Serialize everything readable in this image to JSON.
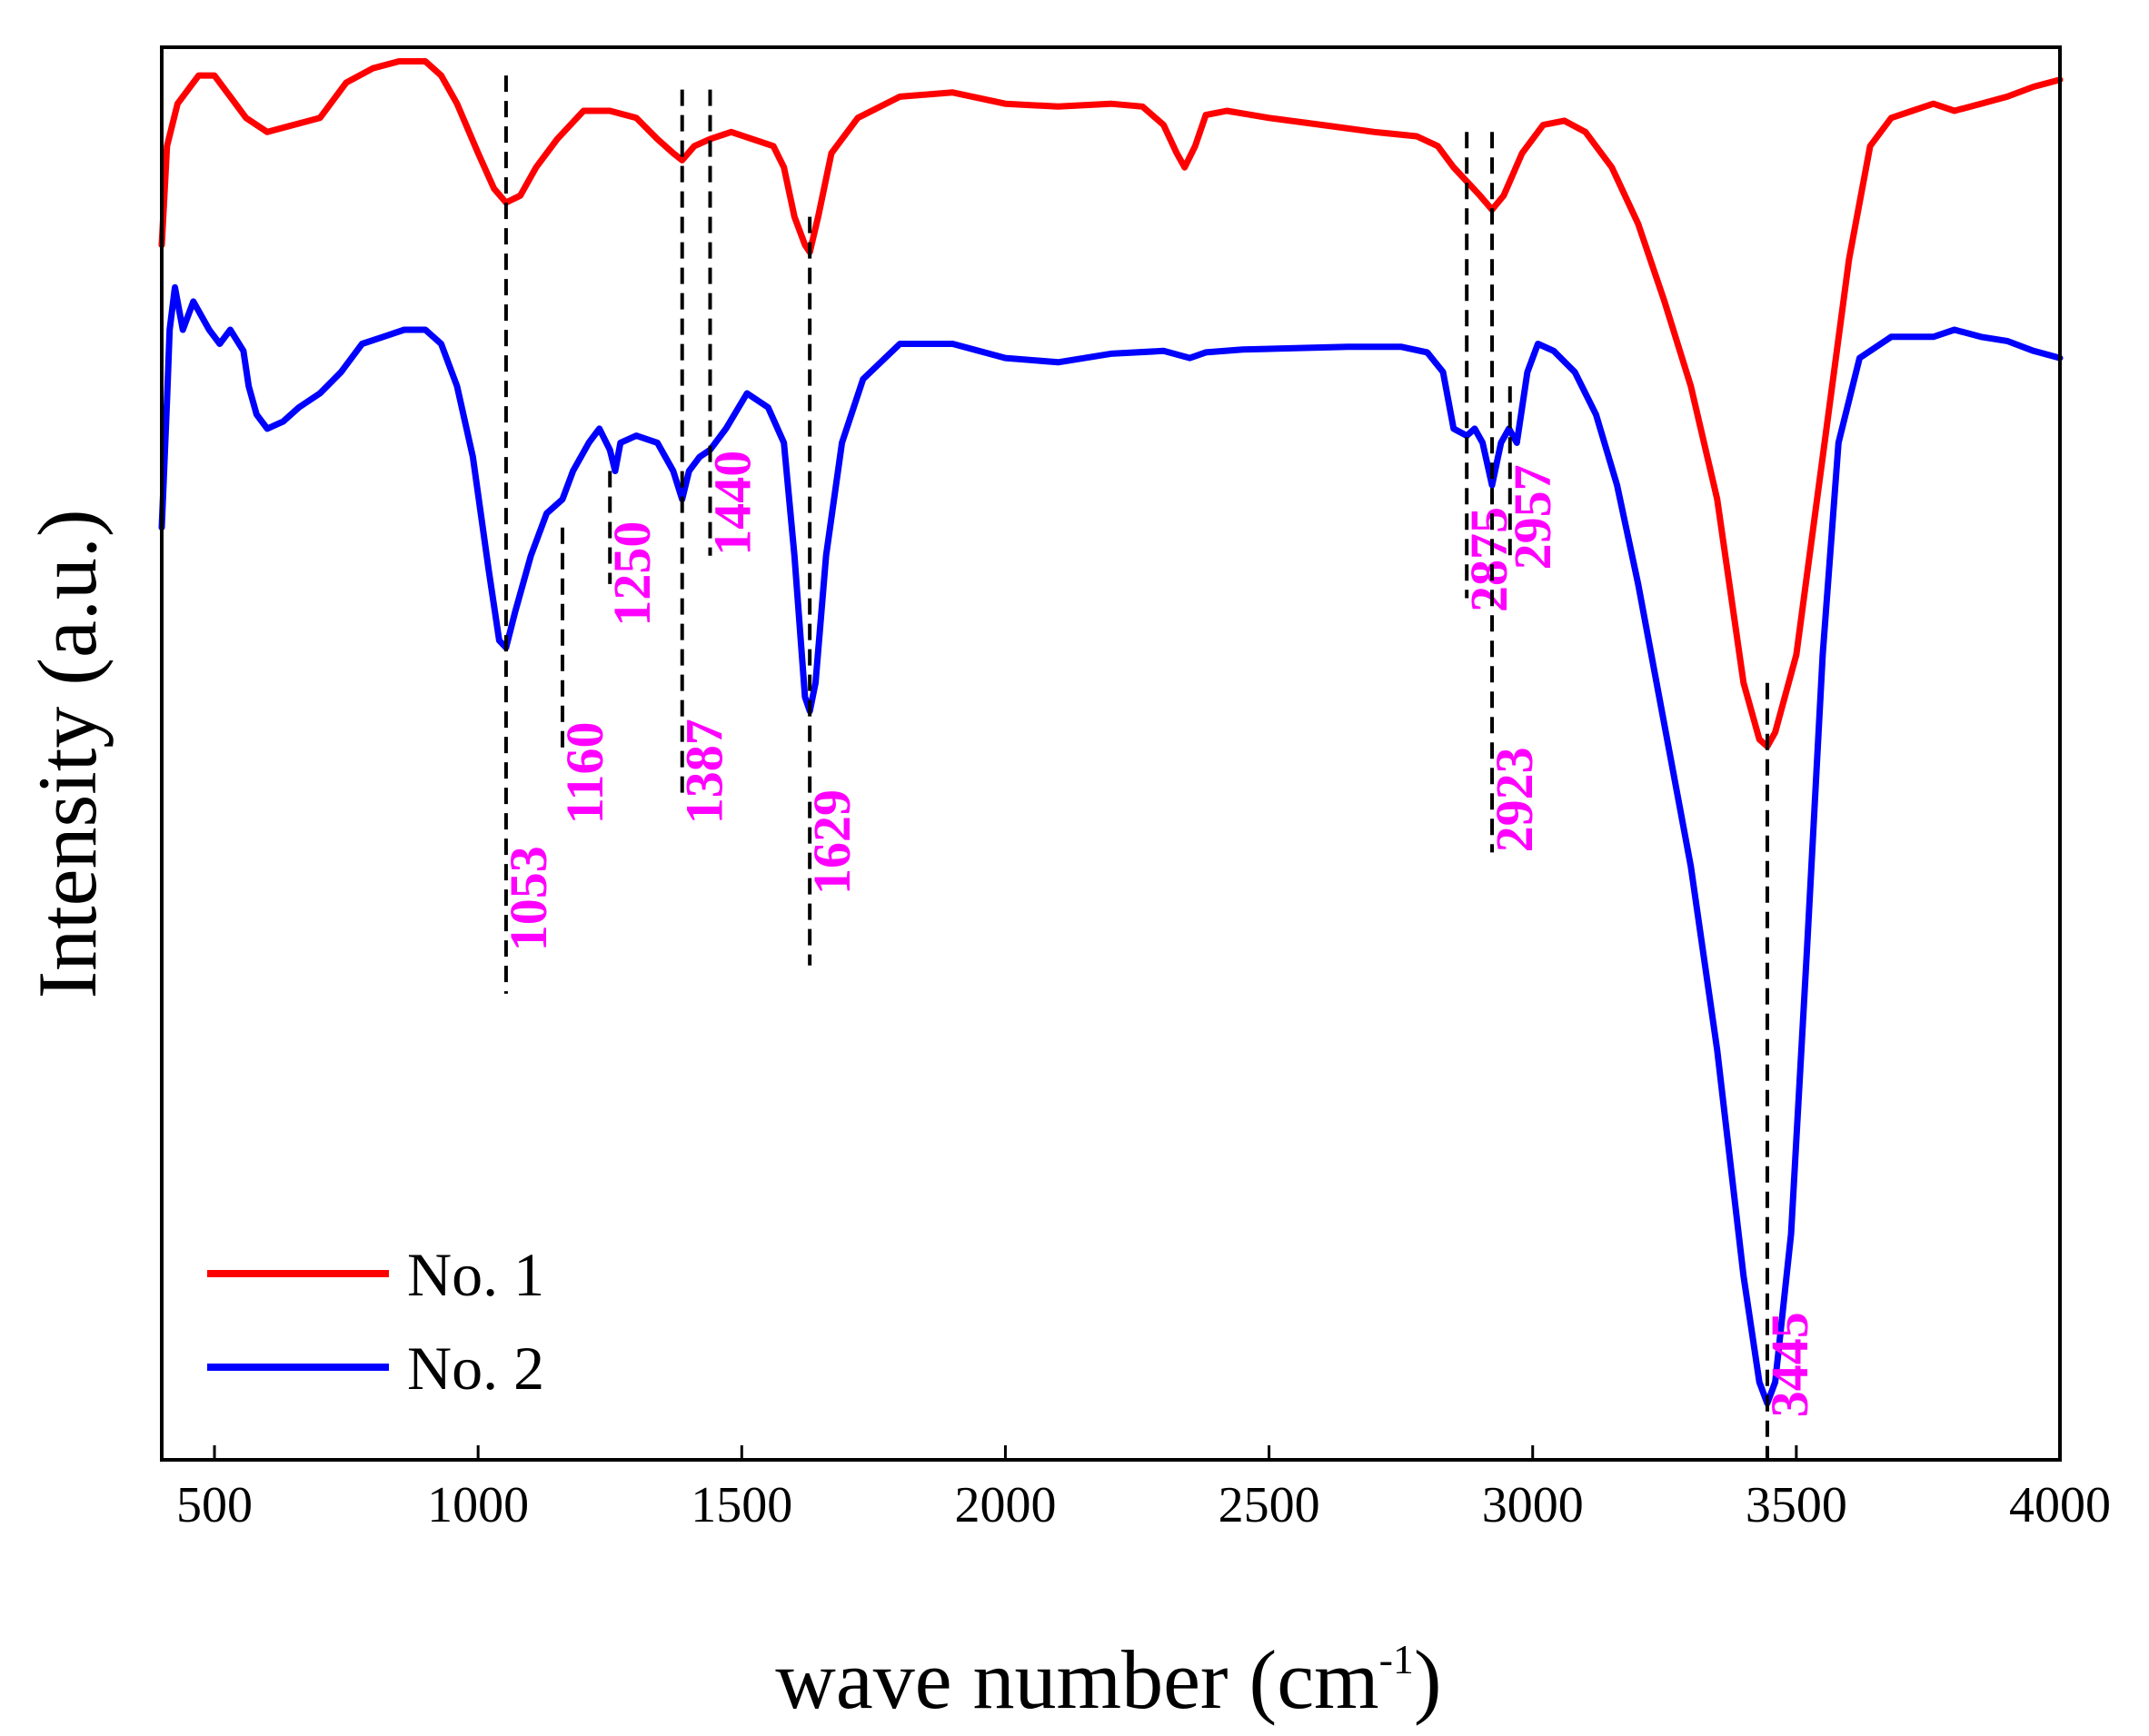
{
  "chart_data": {
    "type": "line",
    "title": "",
    "xlabel": "wave number (cm",
    "xlabel_sup": "-1",
    "xlabel_close": ")",
    "ylabel": "Intensity (a.u.)",
    "xlim": [
      400,
      4000
    ],
    "ylim": [
      0,
      1
    ],
    "x_ticks": [
      500,
      1000,
      1500,
      2000,
      2500,
      3000,
      3500,
      4000
    ],
    "x_tick_labels": [
      "500",
      "1000",
      "1500",
      "2000",
      "2500",
      "3000",
      "3500",
      "4000"
    ],
    "legend": {
      "position": "bottom-left",
      "entries": [
        "No. 1",
        "No. 2"
      ]
    },
    "series": [
      {
        "name": "No. 1",
        "color": "#ff0000",
        "points": [
          [
            400,
            0.86
          ],
          [
            410,
            0.93
          ],
          [
            430,
            0.96
          ],
          [
            470,
            0.98
          ],
          [
            500,
            0.98
          ],
          [
            530,
            0.965
          ],
          [
            560,
            0.95
          ],
          [
            600,
            0.94
          ],
          [
            650,
            0.945
          ],
          [
            700,
            0.95
          ],
          [
            750,
            0.975
          ],
          [
            800,
            0.985
          ],
          [
            850,
            0.99
          ],
          [
            900,
            0.99
          ],
          [
            930,
            0.98
          ],
          [
            960,
            0.96
          ],
          [
            1000,
            0.925
          ],
          [
            1030,
            0.9
          ],
          [
            1053,
            0.89
          ],
          [
            1080,
            0.895
          ],
          [
            1110,
            0.915
          ],
          [
            1150,
            0.935
          ],
          [
            1200,
            0.955
          ],
          [
            1250,
            0.955
          ],
          [
            1300,
            0.95
          ],
          [
            1340,
            0.935
          ],
          [
            1370,
            0.925
          ],
          [
            1387,
            0.92
          ],
          [
            1410,
            0.93
          ],
          [
            1440,
            0.935
          ],
          [
            1480,
            0.94
          ],
          [
            1520,
            0.935
          ],
          [
            1560,
            0.93
          ],
          [
            1580,
            0.915
          ],
          [
            1600,
            0.88
          ],
          [
            1620,
            0.86
          ],
          [
            1629,
            0.855
          ],
          [
            1645,
            0.88
          ],
          [
            1670,
            0.925
          ],
          [
            1720,
            0.95
          ],
          [
            1800,
            0.965
          ],
          [
            1900,
            0.968
          ],
          [
            2000,
            0.96
          ],
          [
            2100,
            0.958
          ],
          [
            2200,
            0.96
          ],
          [
            2260,
            0.958
          ],
          [
            2300,
            0.945
          ],
          [
            2325,
            0.925
          ],
          [
            2340,
            0.915
          ],
          [
            2360,
            0.93
          ],
          [
            2380,
            0.952
          ],
          [
            2420,
            0.955
          ],
          [
            2500,
            0.95
          ],
          [
            2600,
            0.945
          ],
          [
            2700,
            0.94
          ],
          [
            2780,
            0.937
          ],
          [
            2820,
            0.93
          ],
          [
            2850,
            0.915
          ],
          [
            2875,
            0.905
          ],
          [
            2900,
            0.895
          ],
          [
            2923,
            0.885
          ],
          [
            2945,
            0.895
          ],
          [
            2980,
            0.925
          ],
          [
            3020,
            0.945
          ],
          [
            3060,
            0.948
          ],
          [
            3100,
            0.94
          ],
          [
            3150,
            0.915
          ],
          [
            3200,
            0.875
          ],
          [
            3250,
            0.82
          ],
          [
            3300,
            0.76
          ],
          [
            3350,
            0.68
          ],
          [
            3400,
            0.55
          ],
          [
            3430,
            0.51
          ],
          [
            3445,
            0.505
          ],
          [
            3460,
            0.515
          ],
          [
            3500,
            0.57
          ],
          [
            3550,
            0.71
          ],
          [
            3600,
            0.85
          ],
          [
            3640,
            0.93
          ],
          [
            3680,
            0.95
          ],
          [
            3720,
            0.955
          ],
          [
            3760,
            0.96
          ],
          [
            3800,
            0.955
          ],
          [
            3850,
            0.96
          ],
          [
            3900,
            0.965
          ],
          [
            3950,
            0.972
          ],
          [
            4000,
            0.977
          ]
        ]
      },
      {
        "name": "No. 2",
        "color": "#0000ff",
        "points": [
          [
            400,
            0.66
          ],
          [
            410,
            0.75
          ],
          [
            415,
            0.8
          ],
          [
            425,
            0.83
          ],
          [
            440,
            0.8
          ],
          [
            460,
            0.82
          ],
          [
            490,
            0.8
          ],
          [
            510,
            0.79
          ],
          [
            530,
            0.8
          ],
          [
            555,
            0.785
          ],
          [
            565,
            0.76
          ],
          [
            580,
            0.74
          ],
          [
            600,
            0.73
          ],
          [
            630,
            0.735
          ],
          [
            660,
            0.745
          ],
          [
            700,
            0.755
          ],
          [
            740,
            0.77
          ],
          [
            780,
            0.79
          ],
          [
            820,
            0.795
          ],
          [
            860,
            0.8
          ],
          [
            900,
            0.8
          ],
          [
            930,
            0.79
          ],
          [
            960,
            0.76
          ],
          [
            990,
            0.71
          ],
          [
            1020,
            0.63
          ],
          [
            1040,
            0.58
          ],
          [
            1053,
            0.575
          ],
          [
            1070,
            0.6
          ],
          [
            1100,
            0.64
          ],
          [
            1130,
            0.67
          ],
          [
            1160,
            0.68
          ],
          [
            1180,
            0.7
          ],
          [
            1210,
            0.72
          ],
          [
            1230,
            0.73
          ],
          [
            1250,
            0.715
          ],
          [
            1260,
            0.7
          ],
          [
            1270,
            0.72
          ],
          [
            1300,
            0.725
          ],
          [
            1340,
            0.72
          ],
          [
            1370,
            0.7
          ],
          [
            1387,
            0.68
          ],
          [
            1400,
            0.7
          ],
          [
            1420,
            0.71
          ],
          [
            1440,
            0.715
          ],
          [
            1470,
            0.73
          ],
          [
            1510,
            0.755
          ],
          [
            1550,
            0.745
          ],
          [
            1580,
            0.72
          ],
          [
            1600,
            0.64
          ],
          [
            1620,
            0.54
          ],
          [
            1629,
            0.53
          ],
          [
            1640,
            0.55
          ],
          [
            1660,
            0.64
          ],
          [
            1690,
            0.72
          ],
          [
            1730,
            0.765
          ],
          [
            1800,
            0.79
          ],
          [
            1900,
            0.79
          ],
          [
            2000,
            0.78
          ],
          [
            2100,
            0.777
          ],
          [
            2200,
            0.783
          ],
          [
            2300,
            0.785
          ],
          [
            2350,
            0.78
          ],
          [
            2380,
            0.784
          ],
          [
            2450,
            0.786
          ],
          [
            2550,
            0.787
          ],
          [
            2650,
            0.788
          ],
          [
            2750,
            0.788
          ],
          [
            2800,
            0.784
          ],
          [
            2830,
            0.77
          ],
          [
            2850,
            0.73
          ],
          [
            2875,
            0.725
          ],
          [
            2890,
            0.73
          ],
          [
            2905,
            0.72
          ],
          [
            2923,
            0.69
          ],
          [
            2940,
            0.72
          ],
          [
            2955,
            0.73
          ],
          [
            2970,
            0.72
          ],
          [
            2990,
            0.77
          ],
          [
            3010,
            0.79
          ],
          [
            3040,
            0.785
          ],
          [
            3080,
            0.77
          ],
          [
            3120,
            0.74
          ],
          [
            3160,
            0.69
          ],
          [
            3200,
            0.62
          ],
          [
            3250,
            0.52
          ],
          [
            3300,
            0.42
          ],
          [
            3350,
            0.29
          ],
          [
            3400,
            0.13
          ],
          [
            3430,
            0.055
          ],
          [
            3445,
            0.04
          ],
          [
            3460,
            0.055
          ],
          [
            3490,
            0.16
          ],
          [
            3520,
            0.36
          ],
          [
            3550,
            0.57
          ],
          [
            3580,
            0.72
          ],
          [
            3620,
            0.78
          ],
          [
            3680,
            0.795
          ],
          [
            3760,
            0.795
          ],
          [
            3800,
            0.8
          ],
          [
            3850,
            0.795
          ],
          [
            3900,
            0.792
          ],
          [
            3950,
            0.785
          ],
          [
            4000,
            0.78
          ]
        ]
      }
    ],
    "peak_markers": [
      {
        "label": "1053",
        "x": 1053,
        "y_top": 0.98,
        "y_bottom": 0.33,
        "label_y": 0.36
      },
      {
        "label": "1160",
        "x": 1160,
        "y_top": 0.66,
        "y_bottom": 0.5,
        "label_y": 0.45
      },
      {
        "label": "1250",
        "x": 1250,
        "y_top": 0.7,
        "y_bottom": 0.62,
        "label_y": 0.59
      },
      {
        "label": "1387",
        "x": 1387,
        "y_top": 0.97,
        "y_bottom": 0.47,
        "label_y": 0.45
      },
      {
        "label": "1440",
        "x": 1440,
        "y_top": 0.97,
        "y_bottom": 0.64,
        "label_y": 0.64
      },
      {
        "label": "1629",
        "x": 1629,
        "y_top": 0.88,
        "y_bottom": 0.35,
        "label_y": 0.4
      },
      {
        "label": "2875",
        "x": 2875,
        "y_top": 0.94,
        "y_bottom": 0.61,
        "label_y": 0.6
      },
      {
        "label": "2923",
        "x": 2923,
        "y_top": 0.94,
        "y_bottom": 0.43,
        "label_y": 0.43
      },
      {
        "label": "2957",
        "x": 2957,
        "y_top": 0.76,
        "y_bottom": 0.64,
        "label_y": 0.63
      },
      {
        "label": "3445",
        "x": 3445,
        "y_top": 0.55,
        "y_bottom": 0.0,
        "label_y": 0.03
      }
    ]
  }
}
